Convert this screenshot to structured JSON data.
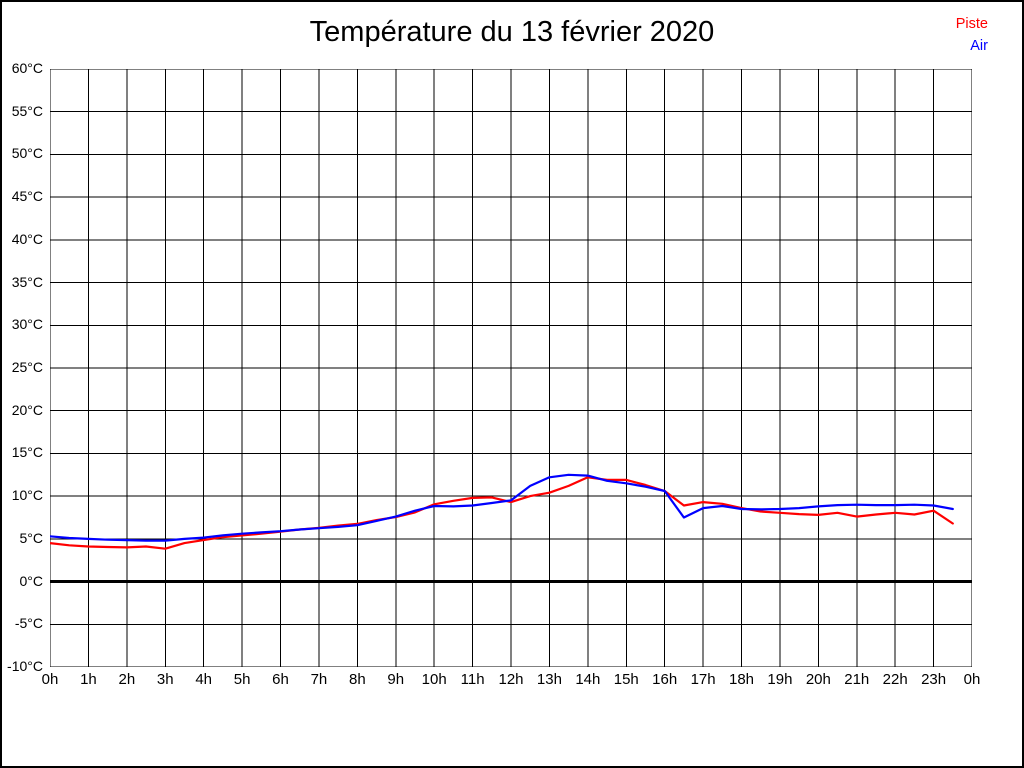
{
  "page": {
    "background": "#ffffff",
    "border_color": "#000000"
  },
  "legend": {
    "position": "top-right",
    "items": [
      {
        "label": "Piste",
        "color": "#ff0000"
      },
      {
        "label": "Air",
        "color": "#0000ff"
      }
    ]
  },
  "chart_data": {
    "type": "line",
    "title": "Température du 13 février 2020",
    "xlabel": "",
    "ylabel": "",
    "y_unit": "°C",
    "x_unit": "h",
    "ylim": [
      -10,
      60
    ],
    "y_step": 5,
    "xlim_hours": [
      0,
      24
    ],
    "x_step_hours": 1,
    "grid": "on",
    "grid_color": "#000000",
    "zero_line": {
      "value": 0,
      "color": "#000000",
      "width": 3
    },
    "y_tick_labels": [
      "60°C",
      "55°C",
      "50°C",
      "45°C",
      "40°C",
      "35°C",
      "30°C",
      "25°C",
      "20°C",
      "15°C",
      "10°C",
      "5°C",
      "0°C",
      "-5°C",
      "-10°C"
    ],
    "x_tick_labels": [
      "0h",
      "1h",
      "2h",
      "3h",
      "4h",
      "5h",
      "6h",
      "7h",
      "8h",
      "9h",
      "10h",
      "11h",
      "12h",
      "13h",
      "14h",
      "15h",
      "16h",
      "17h",
      "18h",
      "19h",
      "20h",
      "21h",
      "22h",
      "23h",
      "0h"
    ],
    "x_hours": [
      0,
      0.5,
      1,
      1.5,
      2,
      2.5,
      3,
      3.5,
      4,
      4.5,
      5,
      5.5,
      6,
      6.5,
      7,
      7.5,
      8,
      8.5,
      9,
      9.5,
      10,
      10.5,
      11,
      11.5,
      12,
      12.5,
      13,
      13.5,
      14,
      14.5,
      15,
      15.5,
      16,
      16.5,
      17,
      17.5,
      18,
      18.5,
      19,
      19.5,
      20,
      20.5,
      21,
      21.5,
      22,
      22.5,
      23,
      23.5
    ],
    "series": [
      {
        "name": "Piste",
        "color": "#ff0000",
        "values": [
          4.5,
          4.25,
          4.1,
          4.05,
          4.0,
          4.1,
          3.85,
          4.5,
          4.85,
          5.2,
          5.4,
          5.6,
          5.85,
          6.1,
          6.3,
          6.55,
          6.75,
          7.2,
          7.55,
          8.1,
          9.05,
          9.45,
          9.8,
          9.85,
          9.3,
          10.0,
          10.4,
          11.2,
          12.2,
          11.9,
          11.9,
          11.3,
          10.6,
          8.9,
          9.3,
          9.1,
          8.6,
          8.2,
          8.05,
          7.9,
          7.8,
          8.05,
          7.6,
          7.85,
          8.05,
          7.85,
          8.3,
          6.8
        ]
      },
      {
        "name": "Air",
        "color": "#0000ff",
        "values": [
          5.3,
          5.1,
          5.0,
          4.9,
          4.85,
          4.8,
          4.8,
          5.0,
          5.15,
          5.4,
          5.6,
          5.75,
          5.9,
          6.1,
          6.25,
          6.4,
          6.6,
          7.1,
          7.6,
          8.3,
          8.85,
          8.8,
          8.9,
          9.2,
          9.5,
          11.2,
          12.2,
          12.5,
          12.4,
          11.8,
          11.5,
          11.1,
          10.6,
          7.5,
          8.6,
          8.85,
          8.5,
          8.45,
          8.5,
          8.6,
          8.8,
          8.95,
          9.0,
          8.95,
          8.95,
          9.0,
          8.9,
          8.5
        ]
      }
    ]
  }
}
